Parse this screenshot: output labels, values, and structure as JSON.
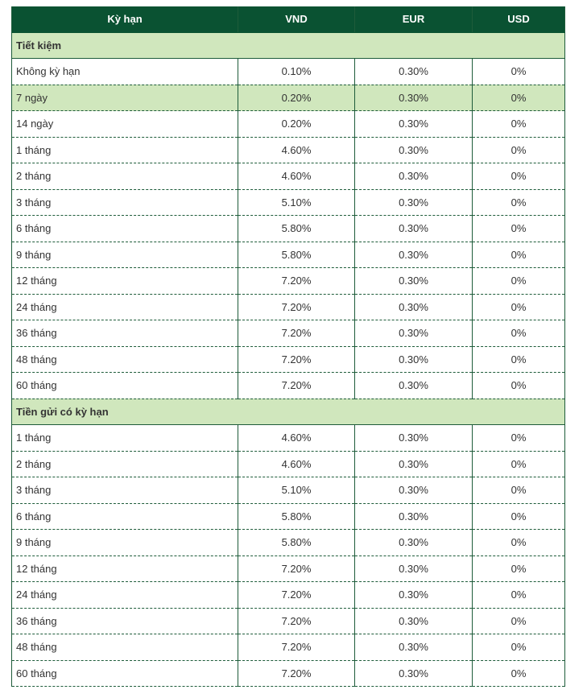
{
  "table": {
    "header": [
      "Kỳ hạn",
      "VND",
      "EUR",
      "USD"
    ],
    "sections": [
      {
        "title": "Tiết kiệm",
        "rows": [
          [
            "Không kỳ hạn",
            "0.10%",
            "0.30%",
            "0%"
          ],
          [
            "7 ngày",
            "0.20%",
            "0.30%",
            "0%"
          ],
          [
            "14 ngày",
            "0.20%",
            "0.30%",
            "0%"
          ],
          [
            "1 tháng",
            "4.60%",
            "0.30%",
            "0%"
          ],
          [
            "2 tháng",
            "4.60%",
            "0.30%",
            "0%"
          ],
          [
            "3 tháng",
            "5.10%",
            "0.30%",
            "0%"
          ],
          [
            "6 tháng",
            "5.80%",
            "0.30%",
            "0%"
          ],
          [
            "9 tháng",
            "5.80%",
            "0.30%",
            "0%"
          ],
          [
            "12 tháng",
            "7.20%",
            "0.30%",
            "0%"
          ],
          [
            "24 tháng",
            "7.20%",
            "0.30%",
            "0%"
          ],
          [
            "36 tháng",
            "7.20%",
            "0.30%",
            "0%"
          ],
          [
            "48 tháng",
            "7.20%",
            "0.30%",
            "0%"
          ],
          [
            "60 tháng",
            "7.20%",
            "0.30%",
            "0%"
          ]
        ]
      },
      {
        "title": "Tiền gửi có kỳ hạn",
        "rows": [
          [
            "1 tháng",
            "4.60%",
            "0.30%",
            "0%"
          ],
          [
            "2 tháng",
            "4.60%",
            "0.30%",
            "0%"
          ],
          [
            "3 tháng",
            "5.10%",
            "0.30%",
            "0%"
          ],
          [
            "6 tháng",
            "5.80%",
            "0.30%",
            "0%"
          ],
          [
            "9 tháng",
            "5.80%",
            "0.30%",
            "0%"
          ],
          [
            "12 tháng",
            "7.20%",
            "0.30%",
            "0%"
          ],
          [
            "24 tháng",
            "7.20%",
            "0.30%",
            "0%"
          ],
          [
            "36 tháng",
            "7.20%",
            "0.30%",
            "0%"
          ],
          [
            "48 tháng",
            "7.20%",
            "0.30%",
            "0%"
          ],
          [
            "60 tháng",
            "7.20%",
            "0.30%",
            "0%"
          ]
        ]
      }
    ]
  }
}
